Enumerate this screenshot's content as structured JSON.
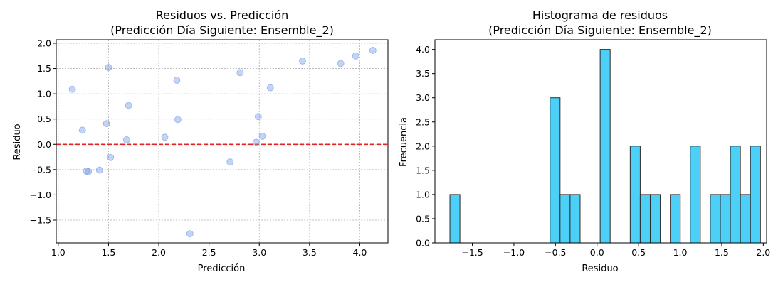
{
  "chart_data": [
    {
      "type": "scatter",
      "title": "Residuos vs. Predicción",
      "subtitle": "(Predicción Día Siguiente: Ensemble_2)",
      "xlabel": "Predicción",
      "ylabel": "Residuo",
      "xlim": [
        0.98,
        4.28
      ],
      "ylim": [
        -1.95,
        2.07
      ],
      "xticks": [
        1.0,
        1.5,
        2.0,
        2.5,
        3.0,
        3.5,
        4.0
      ],
      "xtick_labels": [
        "1.0",
        "1.5",
        "2.0",
        "2.5",
        "3.0",
        "3.5",
        "4.0"
      ],
      "yticks": [
        -1.5,
        -1.0,
        -0.5,
        0.0,
        0.5,
        1.0,
        1.5,
        2.0
      ],
      "ytick_labels": [
        "−1.5",
        "−1.0",
        "−0.5",
        "0.0",
        "0.5",
        "1.0",
        "1.5",
        "2.0"
      ],
      "grid": true,
      "point_color": "#7b9fe6",
      "reference_line": {
        "y": 0,
        "color": "#e8231f",
        "style": "dashed"
      },
      "points": [
        {
          "x": 1.14,
          "y": 1.09
        },
        {
          "x": 1.24,
          "y": 0.28
        },
        {
          "x": 1.28,
          "y": -0.53
        },
        {
          "x": 1.3,
          "y": -0.54
        },
        {
          "x": 1.41,
          "y": -0.51
        },
        {
          "x": 1.48,
          "y": 0.41
        },
        {
          "x": 1.5,
          "y": 1.52
        },
        {
          "x": 1.52,
          "y": -0.26
        },
        {
          "x": 1.68,
          "y": 0.09
        },
        {
          "x": 1.7,
          "y": 0.77
        },
        {
          "x": 2.06,
          "y": 0.14
        },
        {
          "x": 2.18,
          "y": 1.27
        },
        {
          "x": 2.19,
          "y": 0.49
        },
        {
          "x": 2.31,
          "y": -1.77
        },
        {
          "x": 2.71,
          "y": -0.35
        },
        {
          "x": 2.81,
          "y": 1.42
        },
        {
          "x": 2.97,
          "y": 0.04
        },
        {
          "x": 2.99,
          "y": 0.55
        },
        {
          "x": 3.03,
          "y": 0.16
        },
        {
          "x": 3.11,
          "y": 1.12
        },
        {
          "x": 3.43,
          "y": 1.65
        },
        {
          "x": 3.81,
          "y": 1.6
        },
        {
          "x": 3.96,
          "y": 1.75
        },
        {
          "x": 4.13,
          "y": 1.86
        }
      ]
    },
    {
      "type": "bar",
      "subtype": "histogram",
      "title": "Histograma de residuos",
      "subtitle": "(Predicción Día Siguiente: Ensemble_2)",
      "xlabel": "Residuo",
      "ylabel": "Frecuencia",
      "xlim": [
        -1.95,
        2.04
      ],
      "ylim": [
        0,
        4.2
      ],
      "xticks": [
        -1.5,
        -1.0,
        -0.5,
        0.0,
        0.5,
        1.0,
        1.5,
        2.0
      ],
      "xtick_labels": [
        "−1.5",
        "−1.0",
        "−0.5",
        "0.0",
        "0.5",
        "1.0",
        "1.5",
        "2.0"
      ],
      "yticks": [
        0.0,
        0.5,
        1.0,
        1.5,
        2.0,
        2.5,
        3.0,
        3.5,
        4.0
      ],
      "ytick_labels": [
        "0.0",
        "0.5",
        "1.0",
        "1.5",
        "2.0",
        "2.5",
        "3.0",
        "3.5",
        "4.0"
      ],
      "grid": false,
      "bar_color": "#4dd0f7",
      "edge_color": "#2b2b2b",
      "bin_start": -1.77,
      "bin_width": 0.1205,
      "counts": [
        1,
        0,
        0,
        0,
        0,
        0,
        0,
        0,
        0,
        0,
        3,
        1,
        1,
        0,
        0,
        4,
        0,
        0,
        2,
        1,
        1,
        0,
        1,
        0,
        2,
        0,
        1,
        1,
        2,
        1,
        2
      ]
    }
  ]
}
